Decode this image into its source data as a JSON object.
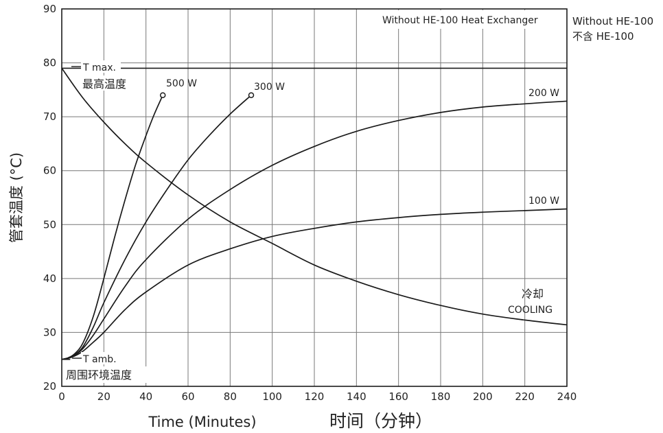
{
  "chart_data": {
    "type": "line",
    "title": "Without HE-100 Heat Exchanger",
    "xlabel": "Time (Minutes)",
    "xlabel_cn": "时间（分钟）",
    "ylabel": "管套温度 (°C)",
    "xlim": [
      0,
      240
    ],
    "ylim": [
      20,
      90
    ],
    "x_ticks": [
      0,
      20,
      40,
      60,
      80,
      100,
      120,
      140,
      160,
      180,
      200,
      220,
      240
    ],
    "y_ticks": [
      20,
      30,
      40,
      50,
      60,
      70,
      80,
      90
    ],
    "grid": true,
    "tmax": 79,
    "tamb": 25,
    "legend_note": [
      "Without HE-100",
      "不含 HE-100"
    ],
    "series": [
      {
        "name": "500 W",
        "x": [
          0,
          3,
          6,
          10,
          15,
          20,
          25,
          30,
          35,
          40,
          44,
          48
        ],
        "y": [
          25,
          25.3,
          26,
          28,
          33,
          40,
          47.5,
          54.5,
          61,
          66.5,
          70.5,
          74
        ]
      },
      {
        "name": "300 W",
        "x": [
          0,
          3,
          6,
          10,
          15,
          20,
          30,
          40,
          50,
          60,
          70,
          80,
          90
        ],
        "y": [
          25,
          25.2,
          25.8,
          27.3,
          31,
          35.5,
          43.5,
          50.5,
          56.5,
          62,
          66.5,
          70.5,
          74
        ]
      },
      {
        "name": "200 W",
        "x": [
          0,
          3,
          6,
          10,
          15,
          20,
          30,
          40,
          60,
          80,
          100,
          120,
          140,
          160,
          180,
          200,
          220,
          240
        ],
        "y": [
          25,
          25.2,
          25.7,
          27,
          29.5,
          32.5,
          38.5,
          43.5,
          51,
          56.5,
          61,
          64.5,
          67.3,
          69.3,
          70.8,
          71.8,
          72.4,
          72.9
        ]
      },
      {
        "name": "100 W",
        "x": [
          0,
          3,
          6,
          10,
          15,
          20,
          30,
          40,
          60,
          80,
          100,
          120,
          140,
          160,
          180,
          200,
          220,
          240
        ],
        "y": [
          25,
          25.2,
          25.6,
          26.5,
          28.2,
          30,
          34.2,
          37.5,
          42.5,
          45.5,
          47.8,
          49.3,
          50.5,
          51.3,
          51.9,
          52.3,
          52.6,
          52.9
        ]
      },
      {
        "name": "冷却 COOLING",
        "x": [
          0,
          10,
          20,
          30,
          40,
          60,
          80,
          100,
          120,
          140,
          160,
          180,
          200,
          220,
          240
        ],
        "y": [
          79,
          73.5,
          69,
          65,
          61.5,
          55.5,
          50.5,
          46.5,
          42.5,
          39.5,
          37,
          35,
          33.4,
          32.3,
          31.4
        ]
      }
    ],
    "annotations": {
      "tmax_label": "T max.",
      "tmax_cn": "最高温度",
      "tamb_label": "T amb.",
      "tamb_cn": "周围环境温度",
      "label_500": "500 W",
      "label_300": "300 W",
      "label_200": "200 W",
      "label_100": "100 W",
      "cooling_cn": "冷却",
      "cooling_en": "COOLING"
    }
  }
}
